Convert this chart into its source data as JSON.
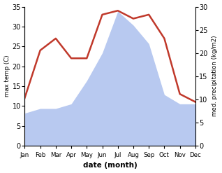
{
  "months": [
    "Jan",
    "Feb",
    "Mar",
    "Apr",
    "May",
    "Jun",
    "Jul",
    "Aug",
    "Sep",
    "Oct",
    "Nov",
    "Dec"
  ],
  "temperature": [
    12,
    24,
    27,
    22,
    22,
    33,
    34,
    32,
    33,
    27,
    13,
    11
  ],
  "precipitation": [
    7,
    8,
    8,
    9,
    14,
    20,
    29,
    26,
    22,
    11,
    9,
    9
  ],
  "temp_color": "#c0392b",
  "precip_color": "#b8c9f0",
  "temp_ylim": [
    0,
    35
  ],
  "precip_ylim": [
    0,
    30
  ],
  "xlabel": "date (month)",
  "ylabel_left": "max temp (C)",
  "ylabel_right": "med. precipitation (kg/m2)",
  "background_color": "#ffffff"
}
